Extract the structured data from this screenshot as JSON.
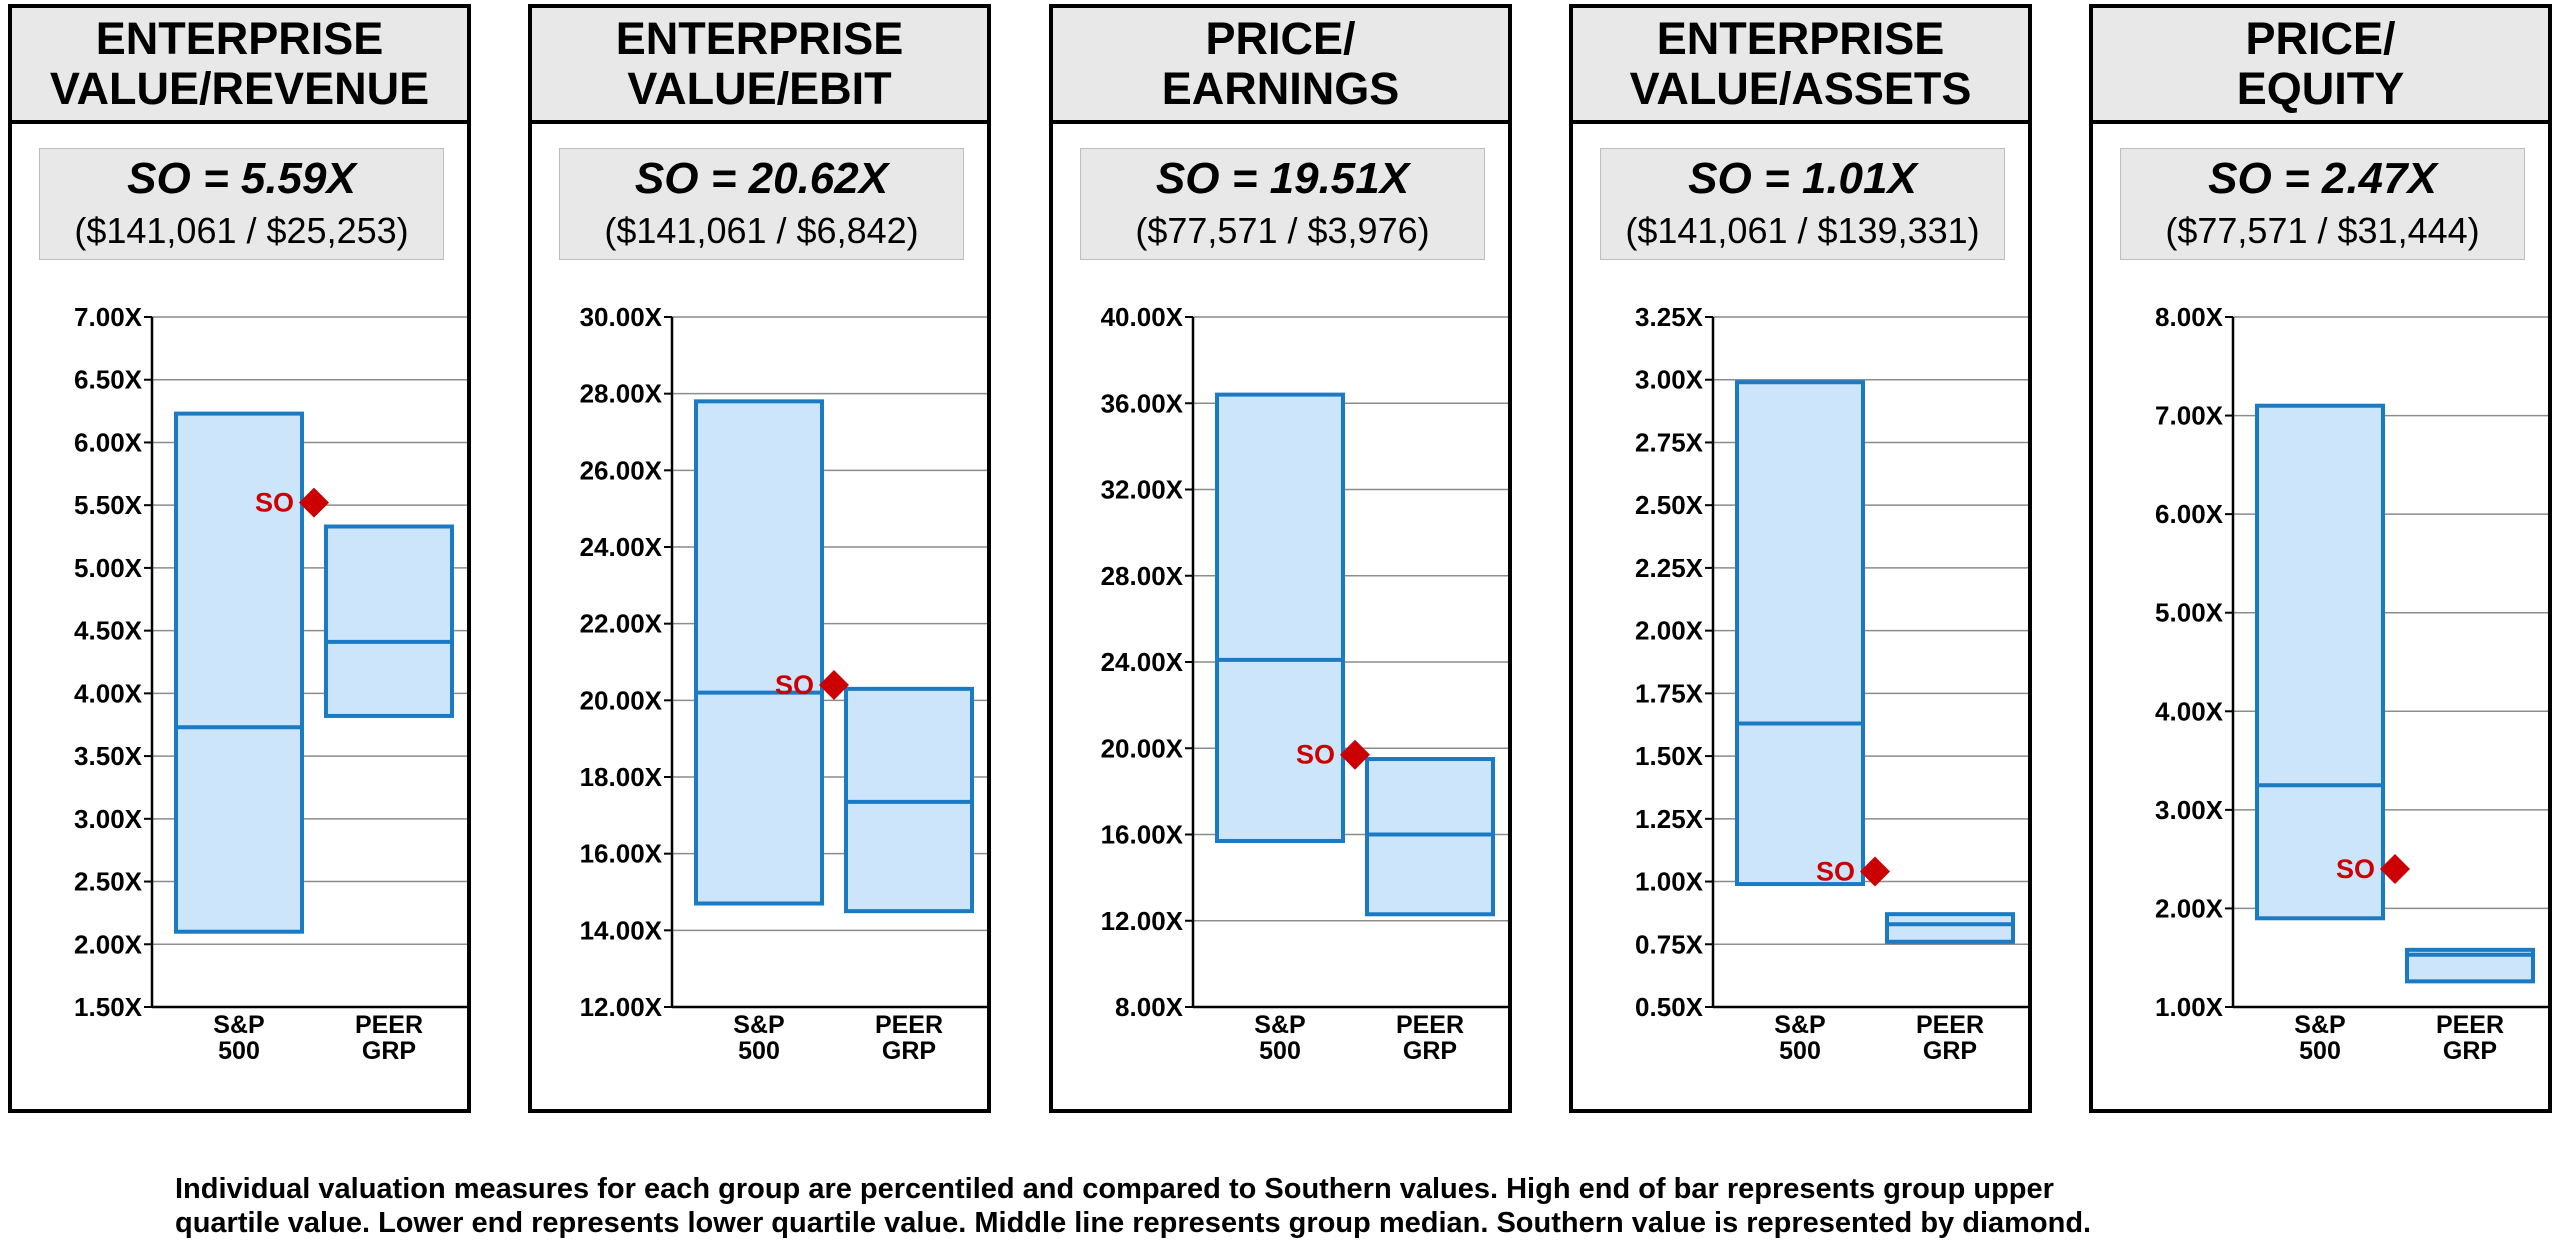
{
  "caption": [
    "Individual valuation measures for each group are percentiled and compared to Southern values.  High end of bar represents group upper",
    "quartile value.  Lower end represents lower quartile value. Middle line represents group median. Southern value is represented by diamond."
  ],
  "colors": {
    "bar_fill": "#cce5fb",
    "bar_stroke": "#1b7ac4",
    "diamond": "#cc0000",
    "gridline": "#8c8c8c"
  },
  "panels": [
    {
      "title": [
        "ENTERPRISE",
        "VALUE/REVENUE"
      ],
      "so_value": "SO = 5.59X",
      "so_formula": "($141,061 / $25,253)"
    },
    {
      "title": [
        "ENTERPRISE",
        "VALUE/EBIT"
      ],
      "so_value": "SO = 20.62X",
      "so_formula": "($141,061 / $6,842)"
    },
    {
      "title": [
        "PRICE/",
        "EARNINGS"
      ],
      "so_value": "SO = 19.51X",
      "so_formula": "($77,571 / $3,976)"
    },
    {
      "title": [
        "ENTERPRISE",
        "VALUE/ASSETS"
      ],
      "so_value": "SO = 1.01X",
      "so_formula": "($141,061 / $139,331)"
    },
    {
      "title": [
        "PRICE/",
        "EQUITY"
      ],
      "so_value": "SO = 2.47X",
      "so_formula": "($77,571 / $31,444)"
    }
  ],
  "chart_data": [
    {
      "type": "box",
      "categories": [
        [
          "S&P",
          "500"
        ],
        [
          "PEER",
          "GRP"
        ]
      ],
      "yticks": [
        "7.00X",
        "6.50X",
        "6.00X",
        "5.50X",
        "5.00X",
        "4.50X",
        "4.00X",
        "3.50X",
        "3.00X",
        "2.50X",
        "2.00X",
        "1.50X"
      ],
      "ylim": [
        1.5,
        7.0
      ],
      "boxes": [
        {
          "low": 2.1,
          "median": 3.73,
          "high": 6.23
        },
        {
          "low": 3.82,
          "median": 4.41,
          "high": 5.33
        }
      ],
      "marker": {
        "label": "SO",
        "value": 5.52
      },
      "grid": true
    },
    {
      "type": "box",
      "categories": [
        [
          "S&P",
          "500"
        ],
        [
          "PEER",
          "GRP"
        ]
      ],
      "yticks": [
        "30.00X",
        "28.00X",
        "26.00X",
        "24.00X",
        "22.00X",
        "20.00X",
        "18.00X",
        "16.00X",
        "14.00X",
        "12.00X"
      ],
      "ylim": [
        12,
        30
      ],
      "boxes": [
        {
          "low": 14.7,
          "median": 20.2,
          "high": 27.8
        },
        {
          "low": 14.5,
          "median": 17.35,
          "high": 20.3
        }
      ],
      "marker": {
        "label": "SO",
        "value": 20.4
      },
      "grid": true
    },
    {
      "type": "box",
      "categories": [
        [
          "S&P",
          "500"
        ],
        [
          "PEER",
          "GRP"
        ]
      ],
      "yticks": [
        "40.00X",
        "36.00X",
        "32.00X",
        "28.00X",
        "24.00X",
        "20.00X",
        "16.00X",
        "12.00X",
        "8.00X"
      ],
      "ylim": [
        8,
        40
      ],
      "boxes": [
        {
          "low": 15.7,
          "median": 24.1,
          "high": 36.4
        },
        {
          "low": 12.3,
          "median": 16.0,
          "high": 19.5
        }
      ],
      "marker": {
        "label": "SO",
        "value": 19.7
      },
      "grid": true
    },
    {
      "type": "box",
      "categories": [
        [
          "S&P",
          "500"
        ],
        [
          "PEER",
          "GRP"
        ]
      ],
      "yticks": [
        "3.25X",
        "3.00X",
        "2.75X",
        "2.50X",
        "2.25X",
        "2.00X",
        "1.75X",
        "1.50X",
        "1.25X",
        "1.00X",
        "0.75X",
        "0.50X"
      ],
      "ylim": [
        0.5,
        3.25
      ],
      "boxes": [
        {
          "low": 0.99,
          "median": 1.63,
          "high": 2.99
        },
        {
          "low": 0.76,
          "median": 0.83,
          "high": 0.87
        }
      ],
      "marker": {
        "label": "SO",
        "value": 1.04
      },
      "grid": true
    },
    {
      "type": "box",
      "categories": [
        [
          "S&P",
          "500"
        ],
        [
          "PEER",
          "GRP"
        ]
      ],
      "yticks": [
        "8.00X",
        "7.00X",
        "6.00X",
        "5.00X",
        "4.00X",
        "3.00X",
        "2.00X",
        "1.00X"
      ],
      "ylim": [
        1,
        8
      ],
      "boxes": [
        {
          "low": 1.9,
          "median": 3.25,
          "high": 7.1
        },
        {
          "low": 1.26,
          "median": 1.53,
          "high": 1.58
        }
      ],
      "marker": {
        "label": "SO",
        "value": 2.4
      },
      "grid": true
    }
  ]
}
